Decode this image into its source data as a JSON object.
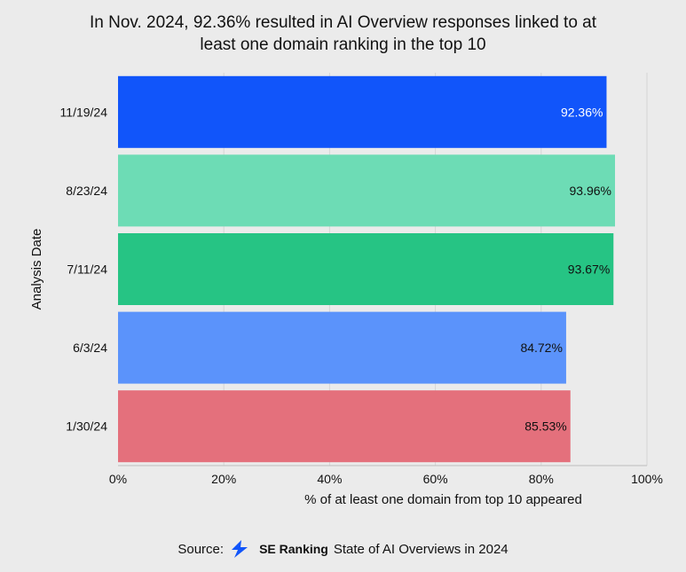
{
  "chart_data": {
    "type": "bar",
    "orientation": "horizontal",
    "title_lines": [
      "In Nov. 2024, 92.36% resulted in AI Overview responses linked to at",
      "least one domain ranking in the top 10"
    ],
    "categories": [
      "11/19/24",
      "8/23/24",
      "7/11/24",
      "6/3/24",
      "1/30/24"
    ],
    "values": [
      92.36,
      93.96,
      93.67,
      84.72,
      85.53
    ],
    "value_labels": [
      "92.36%",
      "93.96%",
      "93.67%",
      "84.72%",
      "85.53%"
    ],
    "bar_colors": [
      "#1155fa",
      "#6ddcb5",
      "#26c484",
      "#5b93fb",
      "#e4707c"
    ],
    "label_colors": [
      "#ffffff",
      "#111111",
      "#111111",
      "#111111",
      "#111111"
    ],
    "xlabel": "% of at least one domain from top 10 appeared",
    "ylabel": "Analysis Date",
    "xlim": [
      0,
      100
    ],
    "xticks": [
      0,
      20,
      40,
      60,
      80,
      100
    ],
    "xtick_labels": [
      "0%",
      "20%",
      "40%",
      "60%",
      "80%",
      "100%"
    ],
    "grid": true,
    "legend": "none"
  },
  "source": {
    "prefix": "Source:",
    "brand": "SE Ranking",
    "suffix": "State of AI Overviews in 2024",
    "logo_icon": "se-ranking-logo-icon",
    "logo_color": "#1155fa"
  }
}
